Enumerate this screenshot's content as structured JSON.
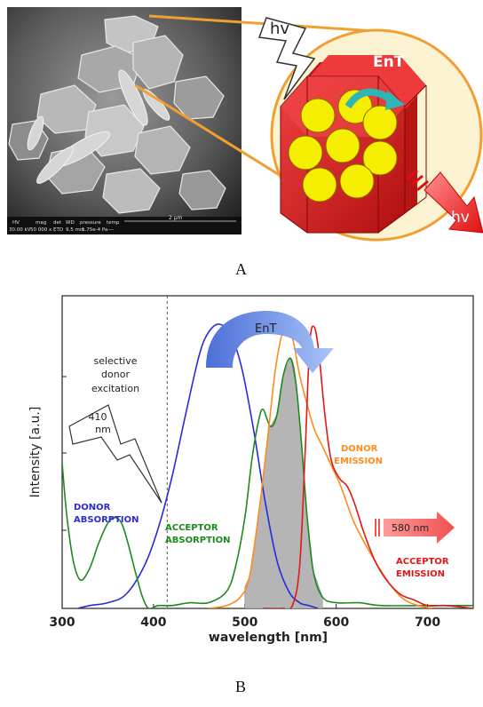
{
  "panel_a": {
    "label": "A",
    "hv_in": "hv",
    "ent": "EnT",
    "hv_out": "hv",
    "scale_bar": "2 μm",
    "sem_info_header": [
      "HV",
      "mag",
      "det",
      "WD",
      "pressure",
      "temp"
    ],
    "sem_info_values": [
      "30.00 kV",
      "50 000 x",
      "ETD",
      "9.5 mm",
      "1.75e-4 Pa",
      "---"
    ]
  },
  "panel_b": {
    "label": "B",
    "ent": "EnT",
    "selective_excitation": [
      "selective",
      "donor",
      "excitation"
    ],
    "excitation_wavelength": [
      "410",
      "nm"
    ],
    "emission_wavelength": "580 nm",
    "donor_absorption": [
      "DONOR",
      "ABSORPTION"
    ],
    "acceptor_absorption": [
      "ACCEPTOR",
      "ABSORPTION"
    ],
    "donor_emission": [
      "DONOR",
      "EMISSION"
    ],
    "acceptor_emission": [
      "ACCEPTOR",
      "EMISSION"
    ]
  },
  "colors": {
    "donor_absorption": "#2a2adb",
    "acceptor_absorption": "#1d8a1d",
    "donor_emission": "#ff8c1a",
    "acceptor_emission": "#e01818",
    "overlap_fill": "#b5b5b5",
    "crystal_red": "#dd1f1f",
    "lumophore_yellow": "#f5ee00",
    "circle_border": "#f0a030"
  },
  "chart_data": {
    "type": "line",
    "xlabel": "wavelength [nm]",
    "ylabel": "Intensity [a.u.]",
    "xlim": [
      300,
      750
    ],
    "ylim": [
      0,
      1.1
    ],
    "xticks": [
      300,
      400,
      500,
      600,
      700
    ],
    "excitation_line_x": 415,
    "series": [
      {
        "name": "DONOR ABSORPTION",
        "x": [
          317,
          330,
          350,
          370,
          390,
          405,
          420,
          435,
          450,
          460,
          472,
          485,
          497,
          510,
          522,
          535,
          548,
          560,
          570,
          580
        ],
        "y": [
          0.0,
          0.01,
          0.02,
          0.05,
          0.15,
          0.28,
          0.46,
          0.68,
          0.89,
          0.97,
          1.0,
          0.96,
          0.84,
          0.62,
          0.38,
          0.17,
          0.06,
          0.02,
          0.01,
          0.0
        ]
      },
      {
        "name": "ACCEPTOR ABSORPTION",
        "x": [
          300,
          305,
          312,
          320,
          330,
          340,
          350,
          357,
          365,
          372,
          380,
          388,
          395,
          405,
          420,
          440,
          460,
          480,
          490,
          500,
          508,
          515,
          520,
          528,
          535,
          542,
          550,
          556,
          562,
          568,
          575,
          585,
          600,
          625,
          650,
          700,
          750
        ],
        "y": [
          0.51,
          0.33,
          0.17,
          0.1,
          0.14,
          0.23,
          0.3,
          0.32,
          0.3,
          0.23,
          0.13,
          0.04,
          0.0,
          0.01,
          0.01,
          0.02,
          0.02,
          0.06,
          0.15,
          0.32,
          0.53,
          0.66,
          0.7,
          0.64,
          0.68,
          0.82,
          0.88,
          0.79,
          0.58,
          0.33,
          0.13,
          0.04,
          0.02,
          0.02,
          0.01,
          0.01,
          0.01
        ]
      },
      {
        "name": "DONOR EMISSION",
        "x": [
          460,
          480,
          495,
          505,
          515,
          525,
          533,
          541,
          547,
          553,
          560,
          568,
          576,
          585,
          595,
          605,
          620,
          640,
          660,
          675,
          690,
          705
        ],
        "y": [
          0.0,
          0.01,
          0.04,
          0.11,
          0.33,
          0.6,
          0.83,
          0.97,
          0.99,
          0.94,
          0.82,
          0.72,
          0.63,
          0.57,
          0.5,
          0.43,
          0.3,
          0.18,
          0.08,
          0.03,
          0.01,
          0.0
        ]
      },
      {
        "name": "ACCEPTOR EMISSION",
        "x": [
          520,
          540,
          552,
          560,
          566,
          571,
          576,
          581,
          587,
          594,
          603,
          612,
          620,
          630,
          642,
          655,
          670,
          685,
          700,
          720,
          750
        ],
        "y": [
          0.0,
          0.0,
          0.01,
          0.15,
          0.55,
          0.93,
          0.99,
          0.9,
          0.7,
          0.53,
          0.46,
          0.43,
          0.37,
          0.27,
          0.17,
          0.1,
          0.05,
          0.03,
          0.01,
          0.01,
          0.0
        ]
      }
    ]
  }
}
